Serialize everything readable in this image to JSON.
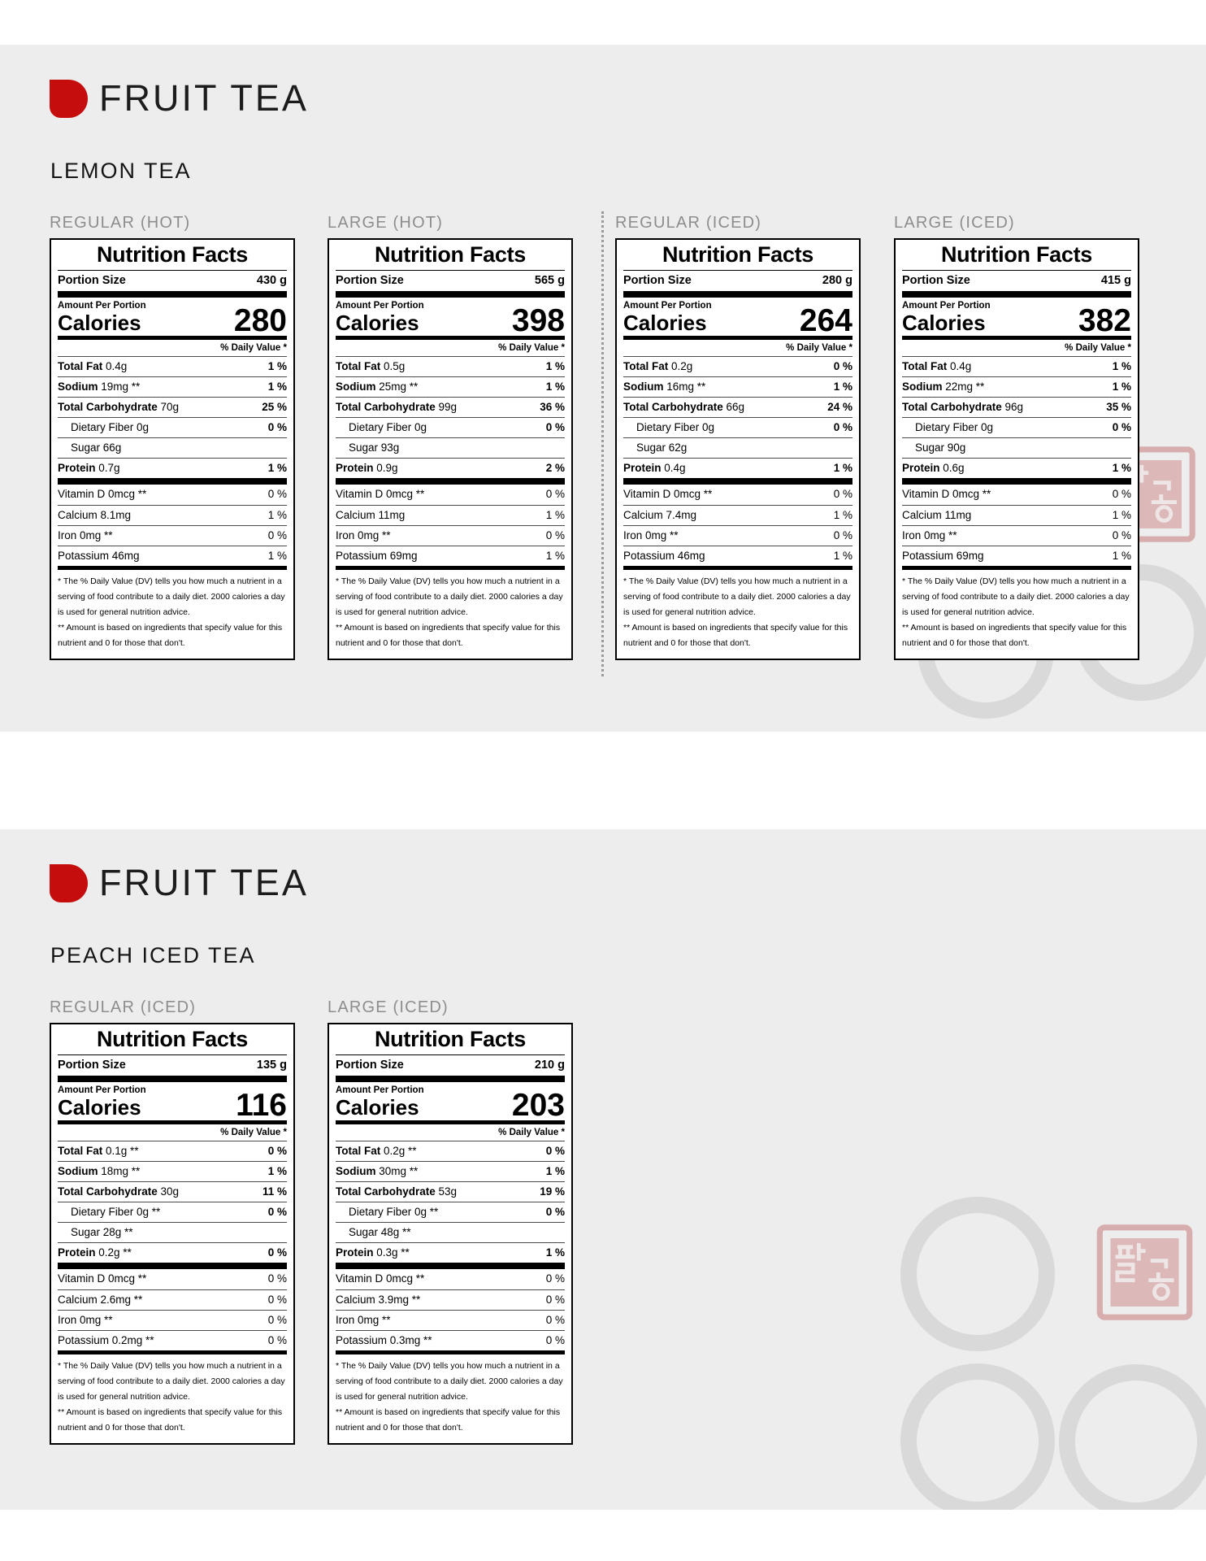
{
  "page": {
    "colors": {
      "accent_red": "#c50d0d",
      "section_background": "#ededed",
      "stamp_red": "#c97070",
      "watermark_grey": "#c9c9c9"
    },
    "stamp_text": "팔공"
  },
  "label_template": {
    "title": "Nutrition Facts",
    "portion_label": "Portion Size",
    "amount_label": "Amount Per Portion",
    "calories_label": "Calories",
    "dv_header": "% Daily Value *",
    "footnote1": "* The % Daily Value (DV) tells you how much a nutrient in a serving of food contribute to a daily diet. 2000 calories a day is used for general nutrition advice.",
    "footnote2": "** Amount is based on ingredients that specify value for this nutrient and 0 for those that don't."
  },
  "sections": [
    {
      "brand": "FRUIT TEA",
      "product": "LEMON TEA",
      "labels": [
        {
          "size_variant": "REGULAR (HOT)",
          "portion_size": "430 g",
          "calories": "280",
          "nutrients": [
            {
              "name": "Total Fat",
              "amount": "0.4g",
              "dv": "1 %",
              "bold": true
            },
            {
              "name": "Sodium",
              "amount": "19mg **",
              "dv": "1 %",
              "bold": true
            },
            {
              "name": "Total Carbohydrate",
              "amount": "70g",
              "dv": "25 %",
              "bold": true
            },
            {
              "name": "Dietary Fiber",
              "amount": "0g",
              "dv": "0 %",
              "indent": true
            },
            {
              "name": "Sugar",
              "amount": "66g",
              "dv": "",
              "indent": true
            },
            {
              "name": "Protein",
              "amount": "0.7g",
              "dv": "1 %",
              "bold": true
            }
          ],
          "vitamins": [
            {
              "name": "Vitamin D",
              "amount": "0mcg **",
              "dv": "0 %"
            },
            {
              "name": "Calcium",
              "amount": "8.1mg",
              "dv": "1 %"
            },
            {
              "name": "Iron",
              "amount": "0mg **",
              "dv": "0 %"
            },
            {
              "name": "Potassium",
              "amount": "46mg",
              "dv": "1 %"
            }
          ]
        },
        {
          "size_variant": "LARGE (HOT)",
          "portion_size": "565 g",
          "calories": "398",
          "nutrients": [
            {
              "name": "Total Fat",
              "amount": "0.5g",
              "dv": "1 %",
              "bold": true
            },
            {
              "name": "Sodium",
              "amount": "25mg **",
              "dv": "1 %",
              "bold": true
            },
            {
              "name": "Total Carbohydrate",
              "amount": "99g",
              "dv": "36 %",
              "bold": true
            },
            {
              "name": "Dietary Fiber",
              "amount": "0g",
              "dv": "0 %",
              "indent": true
            },
            {
              "name": "Sugar",
              "amount": "93g",
              "dv": "",
              "indent": true
            },
            {
              "name": "Protein",
              "amount": "0.9g",
              "dv": "2 %",
              "bold": true
            }
          ],
          "vitamins": [
            {
              "name": "Vitamin D",
              "amount": "0mcg **",
              "dv": "0 %"
            },
            {
              "name": "Calcium",
              "amount": "11mg",
              "dv": "1 %"
            },
            {
              "name": "Iron",
              "amount": "0mg **",
              "dv": "0 %"
            },
            {
              "name": "Potassium",
              "amount": "69mg",
              "dv": "1 %"
            }
          ]
        },
        {
          "size_variant": "REGULAR (ICED)",
          "portion_size": "280 g",
          "calories": "264",
          "nutrients": [
            {
              "name": "Total Fat",
              "amount": "0.2g",
              "dv": "0 %",
              "bold": true
            },
            {
              "name": "Sodium",
              "amount": "16mg **",
              "dv": "1 %",
              "bold": true
            },
            {
              "name": "Total Carbohydrate",
              "amount": "66g",
              "dv": "24 %",
              "bold": true
            },
            {
              "name": "Dietary Fiber",
              "amount": "0g",
              "dv": "0 %",
              "indent": true
            },
            {
              "name": "Sugar",
              "amount": "62g",
              "dv": "",
              "indent": true
            },
            {
              "name": "Protein",
              "amount": "0.4g",
              "dv": "1 %",
              "bold": true
            }
          ],
          "vitamins": [
            {
              "name": "Vitamin D",
              "amount": "0mcg **",
              "dv": "0 %"
            },
            {
              "name": "Calcium",
              "amount": "7.4mg",
              "dv": "1 %"
            },
            {
              "name": "Iron",
              "amount": "0mg **",
              "dv": "0 %"
            },
            {
              "name": "Potassium",
              "amount": "46mg",
              "dv": "1 %"
            }
          ]
        },
        {
          "size_variant": "LARGE (ICED)",
          "portion_size": "415 g",
          "calories": "382",
          "nutrients": [
            {
              "name": "Total Fat",
              "amount": "0.4g",
              "dv": "1 %",
              "bold": true
            },
            {
              "name": "Sodium",
              "amount": "22mg **",
              "dv": "1 %",
              "bold": true
            },
            {
              "name": "Total Carbohydrate",
              "amount": "96g",
              "dv": "35 %",
              "bold": true
            },
            {
              "name": "Dietary Fiber",
              "amount": "0g",
              "dv": "0 %",
              "indent": true
            },
            {
              "name": "Sugar",
              "amount": "90g",
              "dv": "",
              "indent": true
            },
            {
              "name": "Protein",
              "amount": "0.6g",
              "dv": "1 %",
              "bold": true
            }
          ],
          "vitamins": [
            {
              "name": "Vitamin D",
              "amount": "0mcg **",
              "dv": "0 %"
            },
            {
              "name": "Calcium",
              "amount": "11mg",
              "dv": "1 %"
            },
            {
              "name": "Iron",
              "amount": "0mg **",
              "dv": "0 %"
            },
            {
              "name": "Potassium",
              "amount": "69mg",
              "dv": "1 %"
            }
          ]
        }
      ]
    },
    {
      "brand": "FRUIT TEA",
      "product": "PEACH ICED TEA",
      "labels": [
        {
          "size_variant": "REGULAR (ICED)",
          "portion_size": "135 g",
          "calories": "116",
          "nutrients": [
            {
              "name": "Total Fat",
              "amount": "0.1g **",
              "dv": "0 %",
              "bold": true
            },
            {
              "name": "Sodium",
              "amount": "18mg **",
              "dv": "1 %",
              "bold": true
            },
            {
              "name": "Total Carbohydrate",
              "amount": "30g",
              "dv": "11 %",
              "bold": true
            },
            {
              "name": "Dietary Fiber",
              "amount": "0g **",
              "dv": "0 %",
              "indent": true
            },
            {
              "name": "Sugar",
              "amount": "28g **",
              "dv": "",
              "indent": true
            },
            {
              "name": "Protein",
              "amount": "0.2g **",
              "dv": "0 %",
              "bold": true
            }
          ],
          "vitamins": [
            {
              "name": "Vitamin D",
              "amount": "0mcg **",
              "dv": "0 %"
            },
            {
              "name": "Calcium",
              "amount": "2.6mg **",
              "dv": "0 %"
            },
            {
              "name": "Iron",
              "amount": "0mg **",
              "dv": "0 %"
            },
            {
              "name": "Potassium",
              "amount": "0.2mg **",
              "dv": "0 %"
            }
          ]
        },
        {
          "size_variant": "LARGE (ICED)",
          "portion_size": "210 g",
          "calories": "203",
          "nutrients": [
            {
              "name": "Total Fat",
              "amount": "0.2g **",
              "dv": "0 %",
              "bold": true
            },
            {
              "name": "Sodium",
              "amount": "30mg **",
              "dv": "1 %",
              "bold": true
            },
            {
              "name": "Total Carbohydrate",
              "amount": "53g",
              "dv": "19 %",
              "bold": true
            },
            {
              "name": "Dietary Fiber",
              "amount": "0g **",
              "dv": "0 %",
              "indent": true
            },
            {
              "name": "Sugar",
              "amount": "48g **",
              "dv": "",
              "indent": true
            },
            {
              "name": "Protein",
              "amount": "0.3g **",
              "dv": "1 %",
              "bold": true
            }
          ],
          "vitamins": [
            {
              "name": "Vitamin D",
              "amount": "0mcg **",
              "dv": "0 %"
            },
            {
              "name": "Calcium",
              "amount": "3.9mg **",
              "dv": "0 %"
            },
            {
              "name": "Iron",
              "amount": "0mg **",
              "dv": "0 %"
            },
            {
              "name": "Potassium",
              "amount": "0.3mg **",
              "dv": "0 %"
            }
          ]
        }
      ]
    }
  ]
}
